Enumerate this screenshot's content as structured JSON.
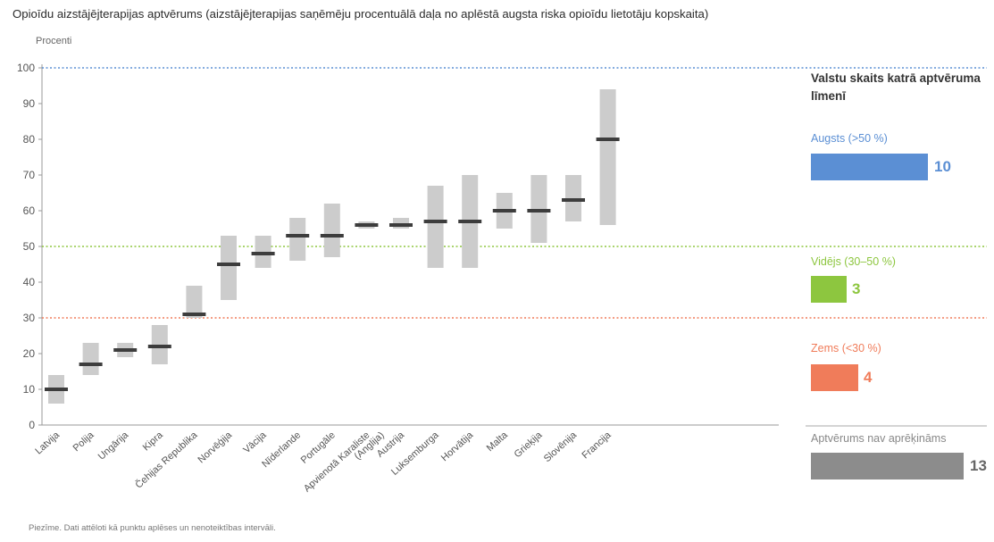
{
  "title": "Opioīdu aizstājējterapijas aptvērums (aizstājējterapijas saņēmēju procentuālā daļa no aplēstā augsta riska opioīdu lietotāju kopskaita)",
  "note": "Piezīme. Dati attēloti kā punktu aplēses un nenoteiktības intervāli.",
  "colors": {
    "high": "#5b8fd4",
    "medium": "#8dc63f",
    "low": "#f07c5a",
    "none": "#8c8c8c",
    "ci": "#cccccc",
    "point": "#3d3d3d"
  },
  "chart_data": {
    "type": "range-point",
    "title": "Opioīdu aizstājējterapijas aptvērums (aizstājējterapijas saņēmēju procentuālā daļa no aplēstā augsta riska opioīdu lietotāju kopskaita)",
    "ylabel": "Procenti",
    "ylim": [
      0,
      100
    ],
    "yticks": [
      0,
      10,
      20,
      30,
      40,
      50,
      60,
      70,
      80,
      90,
      100
    ],
    "reference_lines": [
      100,
      50,
      30
    ],
    "categories": [
      "Latvija",
      "Polija",
      "Ungārija",
      "Kipra",
      "Čehijas Republika",
      "Norvēģija",
      "Vācija",
      "Nīderlande",
      "Portugāle",
      "Apvienotā Karaliste (Anglija)",
      "Austrija",
      "Luksemburga",
      "Horvātija",
      "Malta",
      "Grieķija",
      "Slovēnija",
      "Francija"
    ],
    "values": [
      10,
      17,
      21,
      22,
      31,
      45,
      48,
      53,
      53,
      56,
      56,
      57,
      57,
      60,
      60,
      63,
      80
    ],
    "lower": [
      6,
      14,
      19,
      17,
      30,
      35,
      44,
      46,
      47,
      55,
      55,
      44,
      44,
      55,
      51,
      57,
      56
    ],
    "upper": [
      14,
      23,
      23,
      28,
      39,
      53,
      53,
      58,
      62,
      57,
      58,
      67,
      70,
      65,
      70,
      70,
      94
    ]
  },
  "legend": {
    "heading": "Valstu skaits katrā aptvēruma līmenī",
    "levels": [
      {
        "label": "Augsts (>50 %)",
        "count": "10"
      },
      {
        "label": "Vidējs (30–50 %)",
        "count": "3"
      },
      {
        "label": "Zems (<30 %)",
        "count": "4"
      },
      {
        "label": "Aptvērums nav aprēķināms",
        "count": "13"
      }
    ]
  }
}
